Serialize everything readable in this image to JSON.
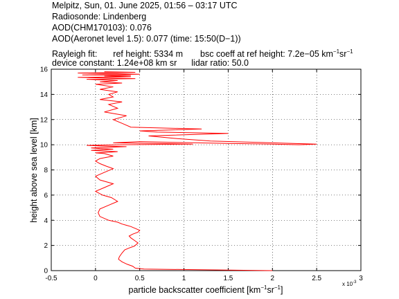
{
  "header": {
    "line1": "Melpitz, Sun, 01. June 2025, 01:56 – 03:17 UTC",
    "line2": "Radiosonde: Lindenberg",
    "line3": "AOD(CHM170103): 0.076",
    "line4": "AOD(Aeronet level 1.5): 0.077   (time: 15:50(D−1))",
    "rayleigh_label": "Rayleigh fit:",
    "ref_height": "ref height: 5334 m",
    "bsc_coeff_prefix": "bsc coeff at ref height: 7.2e−05 km",
    "device_constant": "device constant: 1.24e+08 km sr",
    "lidar_ratio": "lidar ratio: 50.0"
  },
  "chart_data": {
    "type": "line",
    "xlabel_prefix": "particle backscatter coefficient [km",
    "ylabel": "height above sea level [km]",
    "x_exponent_label": "x 10",
    "x_exponent_power": "-3",
    "xlim": [
      -0.5,
      3
    ],
    "ylim": [
      0,
      16
    ],
    "x_ticks": [
      "-0.5",
      "0",
      "0.5",
      "1",
      "1.5",
      "2",
      "2.5",
      "3"
    ],
    "y_ticks": [
      "0",
      "2",
      "4",
      "6",
      "8",
      "10",
      "12",
      "14",
      "16"
    ],
    "grid": true,
    "line_color": "#ff0000",
    "series": [
      {
        "x": [
          2.0,
          1.05,
          0.55,
          0.45,
          0.42,
          0.36,
          0.3,
          0.26,
          0.27,
          0.3,
          0.33,
          0.38,
          0.44,
          0.48,
          0.44,
          0.4,
          0.38,
          0.42,
          0.48,
          0.5,
          0.45,
          0.4,
          0.35,
          0.3,
          0.25,
          0.15,
          0.05,
          0.03,
          0.05,
          0.15,
          0.25,
          0.18,
          0.08,
          0.0,
          0.1,
          0.2,
          0.05,
          0.0,
          0.1,
          0.2,
          0.12,
          0.05,
          0.0,
          0.05,
          0.2,
          0.1,
          0.0,
          0.15,
          0.25,
          0.1,
          -0.05,
          0.1,
          0.2,
          0.05,
          -0.05,
          0.15,
          0.35,
          0.05,
          -0.1,
          0.3,
          1.1,
          0.7,
          0.2,
          0.5,
          1.5,
          2.0,
          2.3,
          2.5,
          2.0,
          1.3,
          0.9,
          0.6,
          1.5,
          0.7,
          0.5,
          1.2,
          0.4,
          0.3,
          0.2,
          0.35,
          0.1,
          0.25,
          0.15,
          0.3,
          0.05,
          0.2,
          0.15,
          0.25,
          0.05,
          0.2,
          0.0,
          0.3,
          0.05,
          0.25,
          -0.1,
          0.45,
          0.1,
          -0.2,
          0.4,
          0.1,
          0.4,
          -0.15,
          0.5,
          0.2,
          -0.2,
          0.45,
          0.1
        ],
        "y": [
          0.0,
          0.08,
          0.12,
          0.2,
          0.35,
          0.5,
          0.7,
          0.9,
          1.1,
          1.4,
          1.65,
          1.8,
          1.95,
          2.2,
          2.4,
          2.6,
          2.75,
          2.9,
          3.05,
          3.2,
          3.35,
          3.5,
          3.6,
          3.7,
          3.85,
          4.0,
          4.3,
          4.6,
          4.9,
          5.2,
          5.5,
          5.8,
          6.0,
          6.3,
          6.6,
          6.9,
          7.2,
          7.5,
          7.8,
          8.1,
          8.3,
          8.5,
          8.7,
          8.9,
          9.1,
          9.3,
          9.35,
          9.4,
          9.45,
          9.5,
          9.55,
          9.6,
          9.65,
          9.7,
          9.75,
          9.8,
          9.85,
          9.9,
          9.95,
          10.0,
          10.05,
          10.1,
          10.15,
          10.25,
          10.1,
          10.05,
          10.0,
          10.05,
          10.15,
          10.3,
          10.5,
          10.7,
          10.9,
          11.0,
          11.1,
          11.25,
          11.4,
          11.7,
          12.0,
          12.3,
          12.6,
          12.9,
          13.2,
          13.4,
          13.6,
          13.8,
          14.0,
          14.2,
          14.4,
          14.6,
          14.8,
          14.9,
          15.0,
          15.1,
          15.2,
          15.25,
          15.3,
          15.35,
          15.4,
          15.45,
          15.5,
          15.55,
          15.6,
          15.65,
          15.7,
          15.75,
          15.8
        ]
      }
    ]
  }
}
